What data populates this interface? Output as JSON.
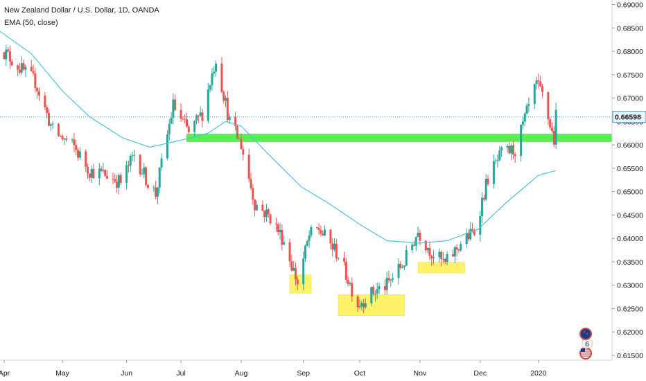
{
  "header": {
    "title": "New Zealand Dollar / U.S. Dollar, 1D, OANDA",
    "indicator": "EMA (50, close)"
  },
  "colors": {
    "up": "#26a69a",
    "down": "#ef5350",
    "ema": "#4dc4d6",
    "resistance_zone": "#56f150",
    "support_zone": "#fff36b",
    "last_price_line": "#4a90b5"
  },
  "icons": [
    "nz-flag-icon",
    "us-flag-icon",
    "event-badge-icon"
  ],
  "chart_data": {
    "type": "candlestick",
    "symbol": "New Zealand Dollar / U.S. Dollar",
    "timeframe": "1D",
    "broker": "OANDA",
    "y_range": [
      0.615,
      0.692
    ],
    "y_ticks": [
      "0.69000",
      "0.68500",
      "0.68000",
      "0.67500",
      "0.67000",
      "0.66500",
      "0.66000",
      "0.65500",
      "0.65000",
      "0.64500",
      "0.64000",
      "0.63500",
      "0.63000",
      "0.62500",
      "0.62000",
      "0.61500"
    ],
    "last_price": "0.66598",
    "x_range": [
      "2019-04-01",
      "2020-02-10"
    ],
    "x_labels": [
      {
        "label": "Apr",
        "date": "2019-04-01"
      },
      {
        "label": "May",
        "date": "2019-05-01"
      },
      {
        "label": "Jun",
        "date": "2019-06-03"
      },
      {
        "label": "Jul",
        "date": "2019-07-01"
      },
      {
        "label": "Aug",
        "date": "2019-08-01"
      },
      {
        "label": "Sep",
        "date": "2019-09-02"
      },
      {
        "label": "Oct",
        "date": "2019-10-01"
      },
      {
        "label": "Nov",
        "date": "2019-11-01"
      },
      {
        "label": "Dec",
        "date": "2019-12-02"
      },
      {
        "label": "2020",
        "date": "2020-01-01"
      }
    ],
    "close_path": [
      [
        "2019-03-29",
        0.6812
      ],
      [
        "2019-04-10",
        0.676
      ],
      [
        "2019-04-17",
        0.6735
      ],
      [
        "2019-04-26",
        0.663
      ],
      [
        "2019-05-07",
        0.6595
      ],
      [
        "2019-05-15",
        0.6545
      ],
      [
        "2019-05-24",
        0.6535
      ],
      [
        "2019-05-31",
        0.652
      ],
      [
        "2019-06-07",
        0.658
      ],
      [
        "2019-06-14",
        0.652
      ],
      [
        "2019-06-18",
        0.6495
      ],
      [
        "2019-06-27",
        0.6685
      ],
      [
        "2019-07-05",
        0.6625
      ],
      [
        "2019-07-12",
        0.6668
      ],
      [
        "2019-07-19",
        0.6785
      ],
      [
        "2019-07-26",
        0.665
      ],
      [
        "2019-08-01",
        0.66
      ],
      [
        "2019-08-08",
        0.6475
      ],
      [
        "2019-08-16",
        0.6445
      ],
      [
        "2019-08-23",
        0.6395
      ],
      [
        "2019-08-30",
        0.6305
      ],
      [
        "2019-09-05",
        0.6405
      ],
      [
        "2019-09-10",
        0.642
      ],
      [
        "2019-09-20",
        0.6365
      ],
      [
        "2019-09-30",
        0.626
      ],
      [
        "2019-10-08",
        0.6285
      ],
      [
        "2019-10-15",
        0.63
      ],
      [
        "2019-10-24",
        0.635
      ],
      [
        "2019-10-31",
        0.6415
      ],
      [
        "2019-11-07",
        0.637
      ],
      [
        "2019-11-14",
        0.6345
      ],
      [
        "2019-11-22",
        0.639
      ],
      [
        "2019-11-29",
        0.6415
      ],
      [
        "2019-12-06",
        0.653
      ],
      [
        "2019-12-13",
        0.658
      ],
      [
        "2019-12-20",
        0.659
      ],
      [
        "2019-12-27",
        0.668
      ],
      [
        "2019-12-31",
        0.6728
      ],
      [
        "2020-01-03",
        0.6705
      ],
      [
        "2020-01-09",
        0.661
      ],
      [
        "2020-01-10",
        0.666
      ]
    ],
    "ema50_path": [
      [
        "2019-03-29",
        0.6845
      ],
      [
        "2019-04-15",
        0.6795
      ],
      [
        "2019-05-01",
        0.6715
      ],
      [
        "2019-05-15",
        0.666
      ],
      [
        "2019-06-01",
        0.6615
      ],
      [
        "2019-06-15",
        0.6595
      ],
      [
        "2019-07-01",
        0.661
      ],
      [
        "2019-07-15",
        0.6625
      ],
      [
        "2019-07-24",
        0.665
      ],
      [
        "2019-08-01",
        0.664
      ],
      [
        "2019-08-15",
        0.658
      ],
      [
        "2019-09-01",
        0.651
      ],
      [
        "2019-09-15",
        0.6475
      ],
      [
        "2019-10-01",
        0.643
      ],
      [
        "2019-10-15",
        0.6395
      ],
      [
        "2019-11-01",
        0.639
      ],
      [
        "2019-11-15",
        0.6395
      ],
      [
        "2019-12-01",
        0.642
      ],
      [
        "2019-12-15",
        0.6475
      ],
      [
        "2020-01-01",
        0.6535
      ],
      [
        "2020-01-10",
        0.6545
      ]
    ],
    "zones": [
      {
        "name": "resistance-support-zone",
        "color": "green",
        "x0": "2019-07-04",
        "x1": "2020-02-10",
        "y0": 0.6607,
        "y1": 0.6623
      },
      {
        "name": "support-zone-sep",
        "color": "yellow",
        "x0": "2019-08-26",
        "x1": "2019-09-06",
        "y0": 0.6283,
        "y1": 0.6322
      },
      {
        "name": "support-zone-oct",
        "color": "yellow",
        "x0": "2019-09-20",
        "x1": "2019-10-24",
        "y0": 0.6235,
        "y1": 0.628
      },
      {
        "name": "support-zone-nov",
        "color": "yellow",
        "x0": "2019-10-31",
        "x1": "2019-11-24",
        "y0": 0.6326,
        "y1": 0.6349
      }
    ],
    "grid": false,
    "legend": "top-left"
  }
}
